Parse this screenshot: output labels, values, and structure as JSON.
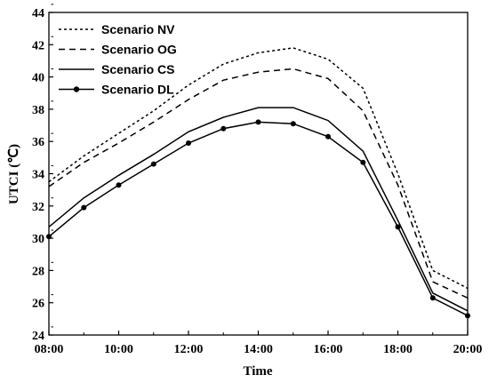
{
  "chart_data": {
    "type": "line",
    "xlabel": "Time",
    "ylabel": "UTCI (℃)",
    "x": [
      "08:00",
      "09:00",
      "10:00",
      "11:00",
      "12:00",
      "13:00",
      "14:00",
      "15:00",
      "16:00",
      "17:00",
      "18:00",
      "19:00",
      "20:00"
    ],
    "xticks": [
      "08:00",
      "10:00",
      "12:00",
      "14:00",
      "16:00",
      "18:00",
      "20:00"
    ],
    "ylim": [
      24,
      44
    ],
    "yticks": [
      24,
      26,
      28,
      30,
      32,
      34,
      36,
      38,
      40,
      42,
      44
    ],
    "grid": false,
    "legend_position": "top-left",
    "series": [
      {
        "name": "Scenario NV",
        "style": "dotted",
        "marker": "none",
        "values": [
          33.5,
          35.1,
          36.5,
          37.9,
          39.5,
          40.8,
          41.5,
          41.8,
          41.1,
          39.3,
          34.0,
          28.0,
          26.9
        ]
      },
      {
        "name": "Scenario OG",
        "style": "dashed",
        "marker": "none",
        "values": [
          33.2,
          34.7,
          35.9,
          37.2,
          38.6,
          39.8,
          40.3,
          40.5,
          39.9,
          37.9,
          33.3,
          27.3,
          26.3
        ]
      },
      {
        "name": "Scenario CS",
        "style": "solid",
        "marker": "none",
        "values": [
          30.7,
          32.5,
          33.9,
          35.2,
          36.6,
          37.5,
          38.1,
          38.1,
          37.3,
          35.4,
          31.1,
          26.6,
          25.5
        ]
      },
      {
        "name": "Scenario DL",
        "style": "solid",
        "marker": "circle",
        "values": [
          30.1,
          31.9,
          33.3,
          34.6,
          35.9,
          36.8,
          37.2,
          37.1,
          36.3,
          34.7,
          30.7,
          26.3,
          25.2
        ]
      }
    ]
  }
}
